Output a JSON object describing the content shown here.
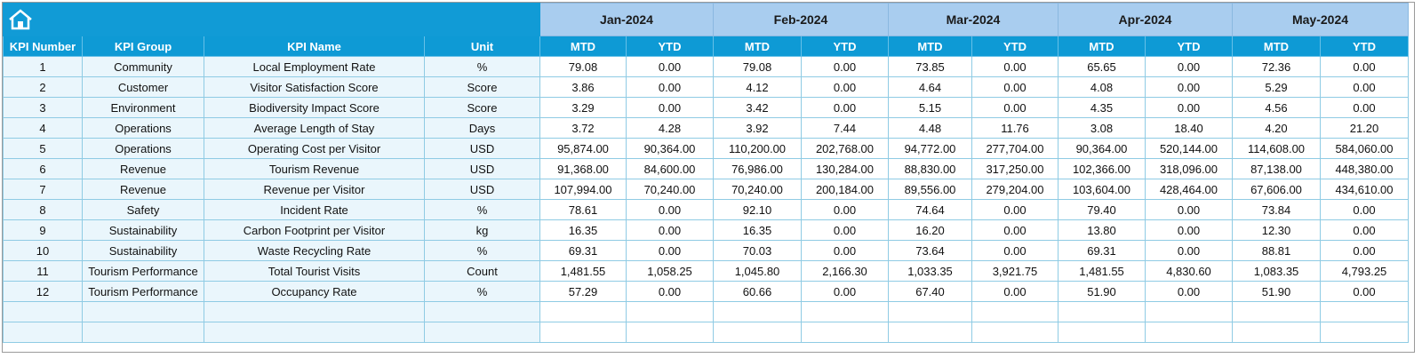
{
  "header": {
    "months": [
      "Jan-2024",
      "Feb-2024",
      "Mar-2024",
      "Apr-2024",
      "May-2024"
    ],
    "columns": [
      "KPI Number",
      "KPI Group",
      "KPI Name",
      "Unit"
    ],
    "sub_columns": [
      "MTD",
      "YTD"
    ]
  },
  "table": {
    "rows": [
      [
        "1",
        "Community",
        "Local Employment Rate",
        "%",
        "79.08",
        "0.00",
        "79.08",
        "0.00",
        "73.85",
        "0.00",
        "65.65",
        "0.00",
        "72.36",
        "0.00"
      ],
      [
        "2",
        "Customer",
        "Visitor Satisfaction Score",
        "Score",
        "3.86",
        "0.00",
        "4.12",
        "0.00",
        "4.64",
        "0.00",
        "4.08",
        "0.00",
        "5.29",
        "0.00"
      ],
      [
        "3",
        "Environment",
        "Biodiversity Impact Score",
        "Score",
        "3.29",
        "0.00",
        "3.42",
        "0.00",
        "5.15",
        "0.00",
        "4.35",
        "0.00",
        "4.56",
        "0.00"
      ],
      [
        "4",
        "Operations",
        "Average Length of Stay",
        "Days",
        "3.72",
        "4.28",
        "3.92",
        "7.44",
        "4.48",
        "11.76",
        "3.08",
        "18.40",
        "4.20",
        "21.20"
      ],
      [
        "5",
        "Operations",
        "Operating Cost per Visitor",
        "USD",
        "95,874.00",
        "90,364.00",
        "110,200.00",
        "202,768.00",
        "94,772.00",
        "277,704.00",
        "90,364.00",
        "520,144.00",
        "114,608.00",
        "584,060.00"
      ],
      [
        "6",
        "Revenue",
        "Tourism Revenue",
        "USD",
        "91,368.00",
        "84,600.00",
        "76,986.00",
        "130,284.00",
        "88,830.00",
        "317,250.00",
        "102,366.00",
        "318,096.00",
        "87,138.00",
        "448,380.00"
      ],
      [
        "7",
        "Revenue",
        "Revenue per Visitor",
        "USD",
        "107,994.00",
        "70,240.00",
        "70,240.00",
        "200,184.00",
        "89,556.00",
        "279,204.00",
        "103,604.00",
        "428,464.00",
        "67,606.00",
        "434,610.00"
      ],
      [
        "8",
        "Safety",
        "Incident Rate",
        "%",
        "78.61",
        "0.00",
        "92.10",
        "0.00",
        "74.64",
        "0.00",
        "79.40",
        "0.00",
        "73.84",
        "0.00"
      ],
      [
        "9",
        "Sustainability",
        "Carbon Footprint per Visitor",
        "kg",
        "16.35",
        "0.00",
        "16.35",
        "0.00",
        "16.20",
        "0.00",
        "13.80",
        "0.00",
        "12.30",
        "0.00"
      ],
      [
        "10",
        "Sustainability",
        "Waste Recycling Rate",
        "%",
        "69.31",
        "0.00",
        "70.03",
        "0.00",
        "73.64",
        "0.00",
        "69.31",
        "0.00",
        "88.81",
        "0.00"
      ],
      [
        "11",
        "Tourism Performance",
        "Total Tourist Visits",
        "Count",
        "1,481.55",
        "1,058.25",
        "1,045.80",
        "2,166.30",
        "1,033.35",
        "3,921.75",
        "1,481.55",
        "4,830.60",
        "1,083.35",
        "4,793.25"
      ],
      [
        "12",
        "Tourism Performance",
        "Occupancy Rate",
        "%",
        "57.29",
        "0.00",
        "60.66",
        "0.00",
        "67.40",
        "0.00",
        "51.90",
        "0.00",
        "51.90",
        "0.00"
      ]
    ]
  }
}
